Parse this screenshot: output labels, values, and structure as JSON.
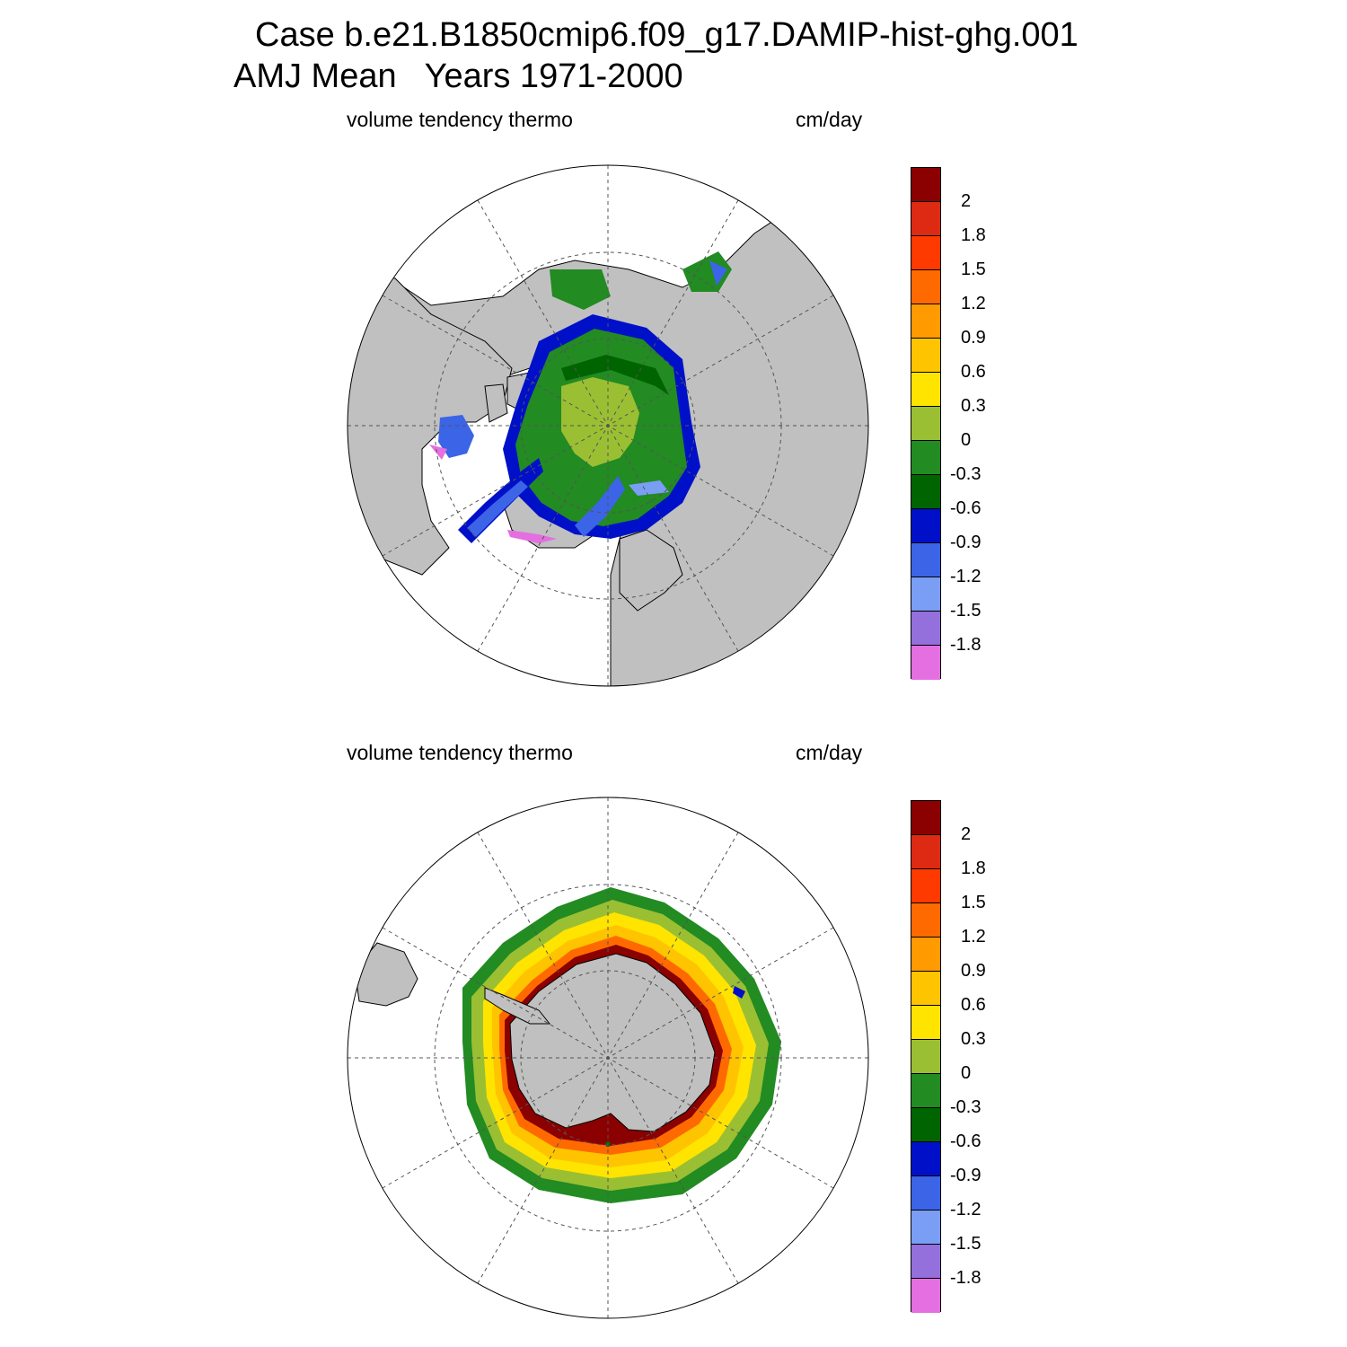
{
  "header": {
    "case_line": "Case b.e21.B1850cmip6.f09_g17.DAMIP-hist-ghg.001",
    "period_line": "AMJ Mean   Years 1971-2000"
  },
  "panels": [
    {
      "id": "arctic",
      "variable": "volume tendency thermo",
      "units": "cm/day"
    },
    {
      "id": "antarctic",
      "variable": "volume tendency thermo",
      "units": "cm/day"
    }
  ],
  "colorbar": {
    "labels": [
      "2",
      "1.8",
      "1.5",
      "1.2",
      "0.9",
      "0.6",
      "0.3",
      "0",
      "-0.3",
      "-0.6",
      "-0.9",
      "-1.2",
      "-1.5",
      "-1.8"
    ],
    "colors": [
      "#8b0000",
      "#dd2a12",
      "#ff3a00",
      "#ff6a00",
      "#ff9a00",
      "#ffc400",
      "#ffe400",
      "#9bbf32",
      "#228b22",
      "#006400",
      "#0010c8",
      "#3c64e6",
      "#7a9ef4",
      "#9370db",
      "#e46fe0"
    ]
  },
  "colors": {
    "land": "#c0c0c0",
    "coast": "#000000",
    "grid": "#555555"
  }
}
